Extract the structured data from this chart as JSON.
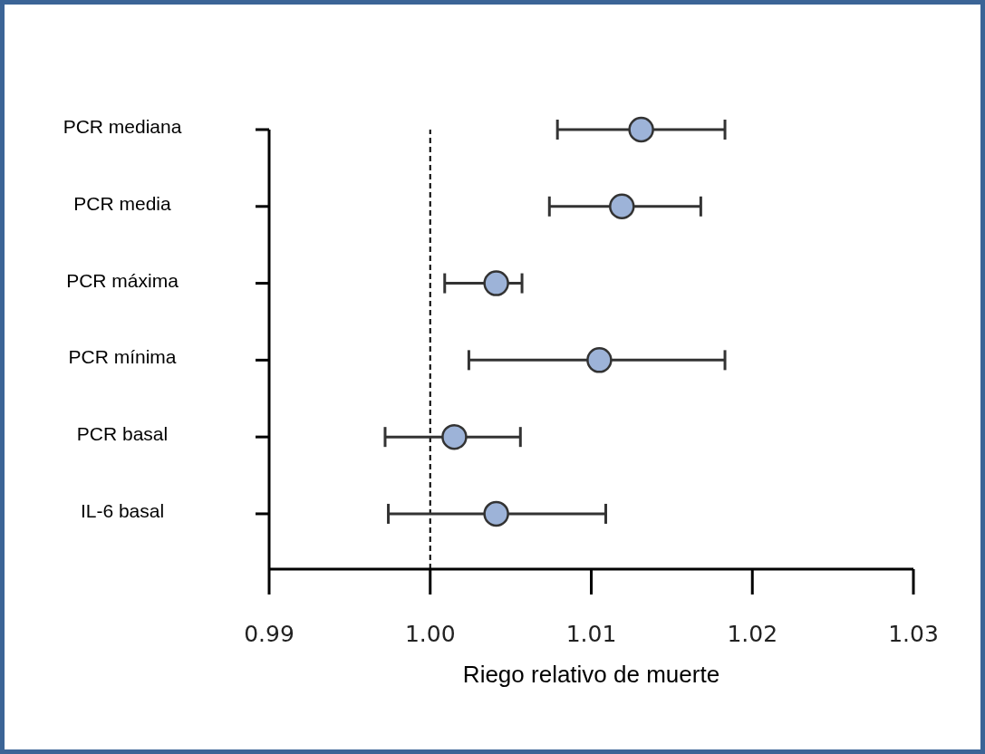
{
  "chart_data": {
    "type": "scatter",
    "orientation": "horizontal",
    "xlabel": "Riego relativo de muerte",
    "categories": [
      "PCR mediana",
      "PCR media",
      "PCR máxima",
      "PCR mínima",
      "PCR basal",
      "IL-6 basal"
    ],
    "values": [
      1.0131,
      1.0119,
      1.0041,
      1.0105,
      1.0015,
      1.0041
    ],
    "errors": [
      [
        1.0079,
        1.0183
      ],
      [
        1.0074,
        1.0168
      ],
      [
        1.0009,
        1.0057
      ],
      [
        1.0024,
        1.0183
      ],
      [
        0.9972,
        1.0056
      ],
      [
        0.9974,
        1.0109
      ]
    ],
    "color": "#9db3d8",
    "marker": "circle",
    "xlim": [
      0.99,
      1.03
    ],
    "xticks": [
      0.99,
      {
        "value": 1,
        "label": "1.00"
      },
      1.01,
      1.02,
      1.03
    ],
    "ref_lines": [
      {
        "axis": "x",
        "value": 1,
        "line_style": "dashed",
        "color": "#000000"
      }
    ]
  }
}
